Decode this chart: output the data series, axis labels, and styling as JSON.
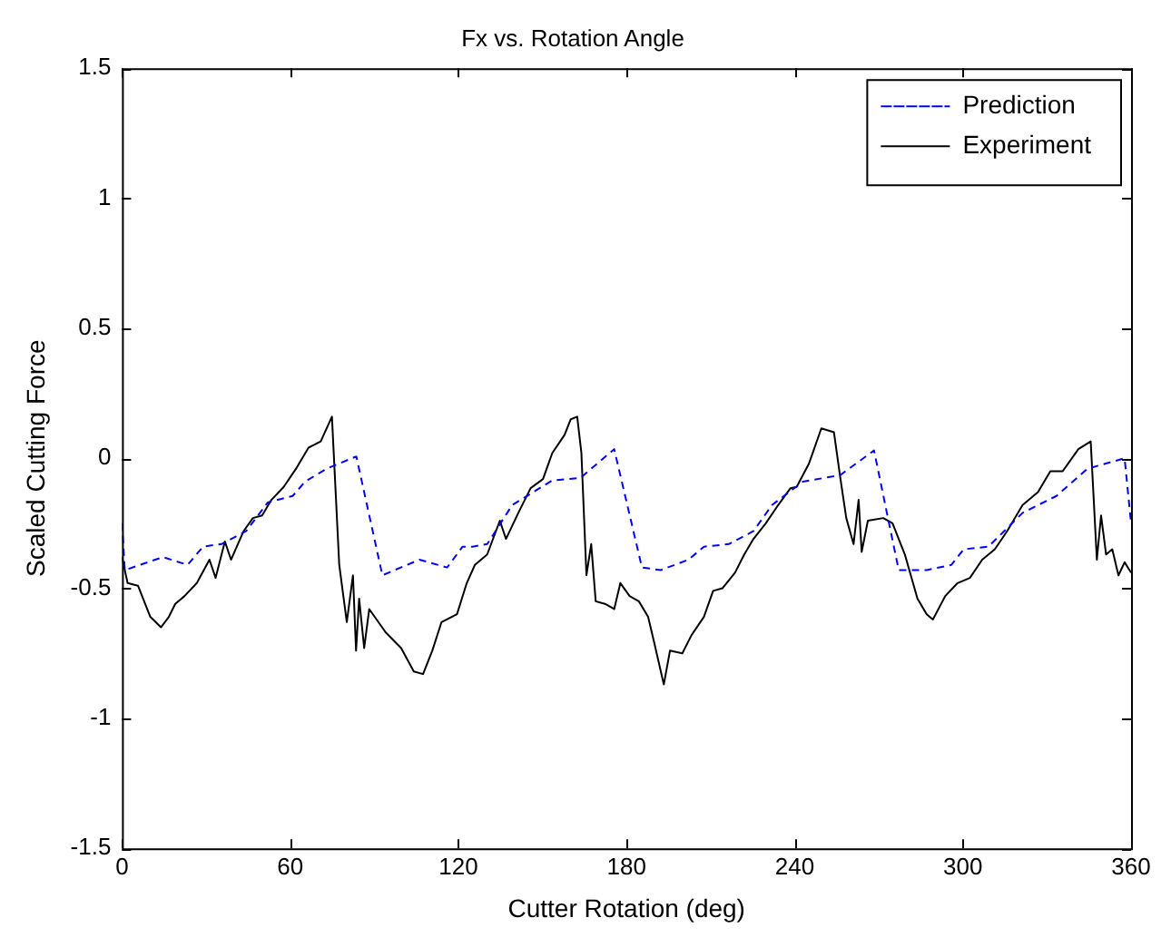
{
  "chart_data": {
    "type": "line",
    "title": "Fx vs. Rotation Angle",
    "xlabel": "Cutter Rotation (deg)",
    "ylabel": "Scaled Cutting Force",
    "xlim": [
      0,
      360
    ],
    "xticks": [
      0,
      60,
      120,
      180,
      240,
      300,
      360
    ],
    "ylim": [
      -1.5,
      1.5
    ],
    "yticks": [
      -1.5,
      -1,
      -0.5,
      0,
      0.5,
      1,
      1.5
    ],
    "grid": false,
    "legend": "top right",
    "marker": "none",
    "series": [
      {
        "name": "Prediction",
        "color": "#0000ff",
        "line_style": "dashed",
        "x": [
          0,
          1,
          14.6,
          23.4,
          28.9,
          35.5,
          44.3,
          52,
          60.9,
          65.3,
          73,
          83.6,
          92.9,
          106.1,
          116,
          121.5,
          125,
          130.3,
          139.2,
          153.5,
          163.5,
          175.6,
          185.5,
          192.2,
          202.1,
          207.6,
          216.5,
          225.3,
          231.9,
          238,
          242.9,
          256.2,
          268.3,
          277.1,
          287.1,
          295.9,
          300.3,
          309.1,
          321.3,
          333.4,
          344.5,
          357.7,
          360
        ],
        "values": [
          -0.25,
          -0.43,
          -0.38,
          -0.41,
          -0.34,
          -0.33,
          -0.28,
          -0.17,
          -0.145,
          -0.09,
          -0.04,
          0.007,
          -0.45,
          -0.39,
          -0.42,
          -0.34,
          -0.34,
          -0.33,
          -0.18,
          -0.085,
          -0.076,
          0.035,
          -0.42,
          -0.43,
          -0.39,
          -0.34,
          -0.33,
          -0.28,
          -0.18,
          -0.13,
          -0.09,
          -0.065,
          0.03,
          -0.43,
          -0.43,
          -0.41,
          -0.35,
          -0.34,
          -0.21,
          -0.145,
          -0.04,
          0.0,
          -0.25
        ]
      },
      {
        "name": "Experiment",
        "color": "#000000",
        "line_style": "solid",
        "x": [
          0,
          2,
          5.7,
          10.1,
          13.9,
          16.7,
          19,
          22.3,
          26.7,
          31.2,
          33.4,
          36.7,
          38.9,
          43.4,
          46.7,
          50,
          53.3,
          57.7,
          62.1,
          66.5,
          70.9,
          74.9,
          77.5,
          80.2,
          82.4,
          83.5,
          84.6,
          86.4,
          88.2,
          94.1,
          99.6,
          104.1,
          107.4,
          110.7,
          114,
          119.5,
          123,
          125.9,
          130.3,
          134.8,
          137,
          141.4,
          145.8,
          150.2,
          153.5,
          157.9,
          160.1,
          162.4,
          163.9,
          165.7,
          167.4,
          169,
          172.3,
          175.6,
          177.8,
          181.1,
          184.4,
          187.7,
          189.9,
          193.3,
          195.5,
          199.9,
          203.2,
          207.6,
          210.9,
          214.2,
          218.7,
          222,
          225.3,
          229.7,
          234.1,
          238.5,
          240.7,
          245.1,
          249.5,
          254,
          256.2,
          258.4,
          261,
          262.8,
          263.9,
          266.1,
          271.6,
          274.9,
          279.3,
          283.8,
          287.1,
          289.3,
          293.7,
          298.1,
          302.5,
          306.9,
          311.4,
          315.8,
          321.3,
          326.8,
          331.2,
          335.6,
          341.2,
          345.6,
          347.8,
          349.3,
          351.1,
          353.3,
          355.5,
          357.7,
          360
        ],
        "values": [
          -0.38,
          -0.48,
          -0.49,
          -0.61,
          -0.65,
          -0.61,
          -0.56,
          -0.53,
          -0.48,
          -0.39,
          -0.46,
          -0.32,
          -0.39,
          -0.28,
          -0.23,
          -0.22,
          -0.16,
          -0.11,
          -0.04,
          0.04,
          0.065,
          0.16,
          -0.41,
          -0.63,
          -0.45,
          -0.74,
          -0.54,
          -0.73,
          -0.58,
          -0.67,
          -0.73,
          -0.82,
          -0.83,
          -0.74,
          -0.63,
          -0.6,
          -0.48,
          -0.41,
          -0.37,
          -0.24,
          -0.31,
          -0.21,
          -0.115,
          -0.08,
          0.02,
          0.09,
          0.15,
          0.16,
          0.02,
          -0.45,
          -0.33,
          -0.55,
          -0.56,
          -0.58,
          -0.48,
          -0.53,
          -0.55,
          -0.61,
          -0.71,
          -0.87,
          -0.74,
          -0.75,
          -0.68,
          -0.61,
          -0.51,
          -0.5,
          -0.44,
          -0.37,
          -0.31,
          -0.25,
          -0.18,
          -0.115,
          -0.11,
          -0.02,
          0.115,
          0.1,
          -0.07,
          -0.23,
          -0.33,
          -0.16,
          -0.36,
          -0.24,
          -0.23,
          -0.25,
          -0.37,
          -0.54,
          -0.6,
          -0.62,
          -0.53,
          -0.48,
          -0.46,
          -0.39,
          -0.35,
          -0.28,
          -0.18,
          -0.13,
          -0.05,
          -0.05,
          0.035,
          0.065,
          -0.39,
          -0.22,
          -0.37,
          -0.35,
          -0.45,
          -0.4,
          -0.44
        ]
      }
    ]
  }
}
